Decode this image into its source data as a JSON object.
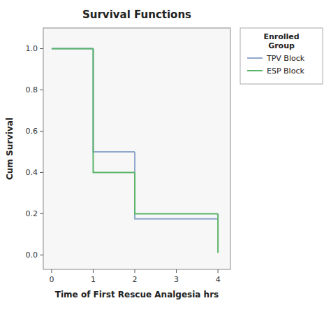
{
  "chart_data": {
    "type": "step",
    "title": "Survival Functions",
    "x_label": "Time of First Rescue Analgesia hrs",
    "y_label": "Cum Survival",
    "xlim": [
      -0.2,
      4.3
    ],
    "ylim": [
      -0.07,
      1.1
    ],
    "xticks": [
      0,
      1,
      2,
      3,
      4
    ],
    "yticks": [
      {
        "value": 0.0,
        "label": "0.0"
      },
      0.2,
      0.4,
      0.6,
      0.8,
      {
        "value": 1.0,
        "label": "1.0"
      }
    ],
    "x": [
      0,
      1,
      2,
      4
    ],
    "legend": "right",
    "legend_title": "Enrolled\nGroup",
    "series": [
      {
        "name": "TPV Block",
        "color": "#8fa8cc",
        "values": [
          1.0,
          0.5,
          0.175,
          0.175
        ]
      },
      {
        "name": "ESP Block",
        "color": "#5ab56a",
        "values": [
          1.0,
          0.4,
          0.2,
          0.01
        ]
      }
    ]
  }
}
